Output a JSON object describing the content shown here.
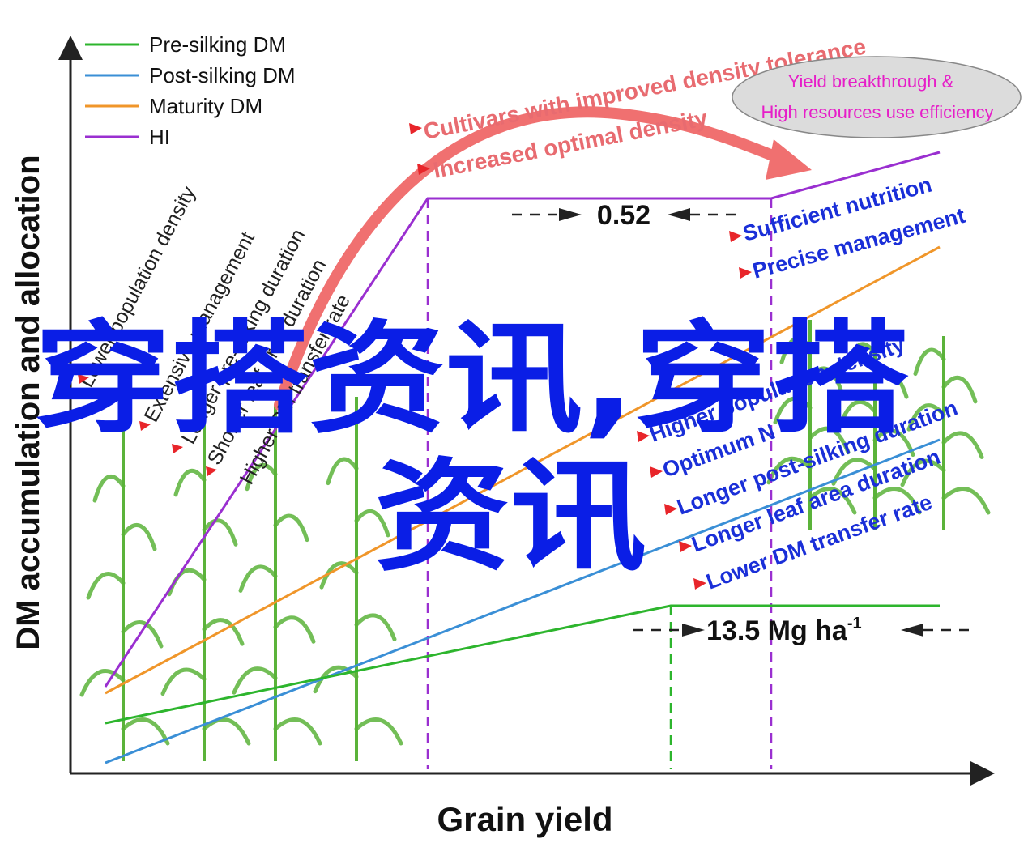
{
  "axes": {
    "xlabel": "Grain yield",
    "ylabel": "DM accumulation and allocation"
  },
  "legend": {
    "items": [
      {
        "label": "Pre-silking DM",
        "color": "#2db52d"
      },
      {
        "label": "Post-silking DM",
        "color": "#3a8fd6"
      },
      {
        "label": "Maturity DM",
        "color": "#f0962a"
      },
      {
        "label": "HI",
        "color": "#9a2fd0"
      }
    ]
  },
  "left_factors": [
    "Lower population density",
    "Extensive management",
    "Longer pre-silking duration",
    "Shorter leaf area duration",
    "Higher DM transfer rate"
  ],
  "top_factors": [
    "Cultivars with improved density tolerance",
    "Increased optimal density"
  ],
  "goal": {
    "line1": "Yield breakthrough &",
    "line2": "High resources use efficiency"
  },
  "right_factors": [
    "Sufficient nutrition",
    "Precise management",
    "Higher population density",
    "Optimum N",
    "Longer  post-silking duration",
    "Longer leaf area duration",
    "Lower DM transfer rate"
  ],
  "annotations": {
    "hi_value": "0.52",
    "yield_value": "13.5 Mg ha",
    "yield_sup": "-1"
  },
  "watermark": {
    "line1": "穿搭资讯,穿搭",
    "line2": "资讯"
  },
  "colors": {
    "axis": "#222222",
    "arrow_red": "#e8454a",
    "left_text": "#222222",
    "top_text": "#e86b70",
    "right_text": "#1a2fd8",
    "goal_text": "#e61ec8",
    "goal_fill": "#dcdcdc",
    "watermark": "#0a1ee6",
    "plant": "#5bb33a"
  }
}
